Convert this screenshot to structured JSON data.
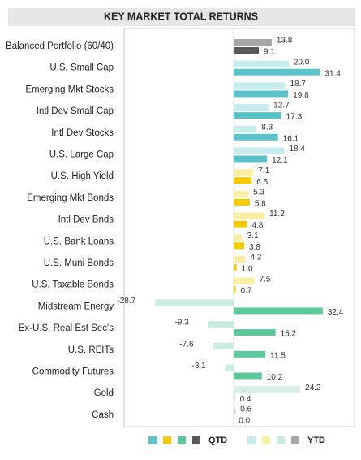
{
  "chart_data": {
    "type": "bar",
    "orientation": "horizontal",
    "title": "KEY MARKET TOTAL RETURNS",
    "categories": [
      "Balanced Portfolio (60/40)",
      "U.S. Small Cap",
      "Emerging Mkt Stocks",
      "Intl Dev Small Cap",
      "Intl Dev Stocks",
      "U.S. Large Cap",
      "U.S. High Yield",
      "Emerging Mkt Bonds",
      "Intl Dev Bnds",
      "U.S. Bank Loans",
      "U.S. Muni Bonds",
      "U.S. Taxable Bonds",
      "Midstream Energy",
      "Ex-U.S. Real Est Sec's",
      "U.S. REITs",
      "Commodity Futures",
      "Gold",
      "Cash"
    ],
    "xlim": [
      -40,
      44
    ],
    "series": [
      {
        "name": "YTD",
        "values": [
          13.8,
          20,
          18.7,
          12.7,
          8.3,
          18.4,
          7.1,
          5.3,
          11.2,
          3.1,
          4.2,
          7.5,
          -28.7,
          -9.3,
          -7.6,
          -3.1,
          24.2,
          0.6
        ],
        "value_labels": [
          "13.8",
          "20.0",
          "18.7",
          "12.7",
          "8.3",
          "18.4",
          "7.1",
          "5.3",
          "11.2",
          "3.1",
          "4.2",
          "7.5",
          "-28.7",
          "-9.3",
          "-7.6",
          "-3.1",
          "24.2",
          "0.6"
        ],
        "colors": [
          "#a6a6a6",
          "#c5ecef",
          "#c5ecef",
          "#c5ecef",
          "#c5ecef",
          "#c5ecef",
          "#fbeea2",
          "#fbeea2",
          "#fbeea2",
          "#fbeea2",
          "#fbeea2",
          "#fbeea2",
          "#c9eedd",
          "#c9eedd",
          "#c9eedd",
          "#c9eedd",
          "#d6eee4",
          "#d0d0d0"
        ],
        "legend_colors": [
          "#c5ecef",
          "#fbeea2",
          "#c9eedd",
          "#a6a6a6"
        ]
      },
      {
        "name": "QTD",
        "values": [
          9.1,
          31.4,
          19.8,
          17.3,
          16.1,
          12.1,
          6.5,
          5.8,
          4.8,
          3.8,
          1,
          0.7,
          32.4,
          15.2,
          11.5,
          10.2,
          0.4,
          0
        ],
        "value_labels": [
          "9.1",
          "31.4",
          "19.8",
          "17.3",
          "16.1",
          "12.1",
          "6.5",
          "5.8",
          "4.8",
          "3.8",
          "1.0",
          "0.7",
          "32.4",
          "15.2",
          "11.5",
          "10.2",
          "0.4",
          "0.0"
        ],
        "colors": [
          "#595959",
          "#5bc3cc",
          "#5bc3cc",
          "#5bc3cc",
          "#5bc3cc",
          "#5bc3cc",
          "#f5cb00",
          "#f5cb00",
          "#f5cb00",
          "#f5cb00",
          "#f5cb00",
          "#f5cb00",
          "#5cc99a",
          "#5cc99a",
          "#5cc99a",
          "#5cc99a",
          "#b9c9c0",
          "#a6a6a6"
        ],
        "legend_colors": [
          "#5bc3cc",
          "#f5cb00",
          "#5cc99a",
          "#595959"
        ]
      }
    ]
  }
}
